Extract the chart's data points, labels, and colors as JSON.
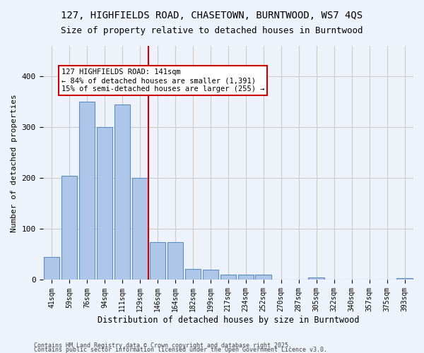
{
  "title_line1": "127, HIGHFIELDS ROAD, CHASETOWN, BURNTWOOD, WS7 4QS",
  "title_line2": "Size of property relative to detached houses in Burntwood",
  "xlabel": "Distribution of detached houses by size in Burntwood",
  "ylabel": "Number of detached properties",
  "categories": [
    "41sqm",
    "59sqm",
    "76sqm",
    "94sqm",
    "111sqm",
    "129sqm",
    "146sqm",
    "164sqm",
    "182sqm",
    "199sqm",
    "217sqm",
    "234sqm",
    "252sqm",
    "270sqm",
    "287sqm",
    "305sqm",
    "322sqm",
    "340sqm",
    "357sqm",
    "375sqm",
    "393sqm"
  ],
  "values": [
    45,
    204,
    350,
    300,
    345,
    200,
    74,
    74,
    22,
    20,
    10,
    10,
    10,
    0,
    0,
    5,
    0,
    0,
    0,
    0,
    3
  ],
  "bar_color": "#aec6e8",
  "bar_edge_color": "#5a8fc0",
  "vline_x": 5.5,
  "annotation_text": "127 HIGHFIELDS ROAD: 141sqm\n← 84% of detached houses are smaller (1,391)\n15% of semi-detached houses are larger (255) →",
  "annotation_box_color": "#ffffff",
  "annotation_box_edge": "#cc0000",
  "vline_color": "#cc0000",
  "background_color": "#eef2fb",
  "grid_color": "#cccccc",
  "footer_line1": "Contains HM Land Registry data © Crown copyright and database right 2025.",
  "footer_line2": "Contains public sector information licensed under the Open Government Licence v3.0.",
  "ylim": [
    0,
    460
  ]
}
